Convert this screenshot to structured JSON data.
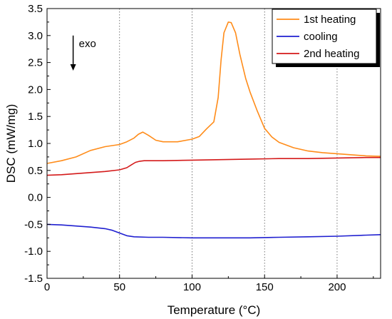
{
  "chart_data": {
    "type": "line",
    "xlabel": "Temperature (°C)",
    "ylabel": "DSC (mW/mg)",
    "xlim": [
      0,
      230
    ],
    "ylim": [
      -1.5,
      3.5
    ],
    "xticks": [
      0,
      50,
      100,
      150,
      200
    ],
    "yticks": [
      -1.5,
      -1.0,
      -0.5,
      0.0,
      0.5,
      1.0,
      1.5,
      2.0,
      2.5,
      3.0,
      3.5
    ],
    "ytick_labels": [
      "-1.5",
      "-1.0",
      "-0.5",
      "0.0",
      "0.5",
      "1.0",
      "1.5",
      "2.0",
      "2.5",
      "3.0",
      "3.5"
    ],
    "xtick_labels": [
      "0",
      "50",
      "100",
      "150",
      "200"
    ],
    "vertical_gridlines_at": [
      50,
      100,
      150,
      200
    ],
    "grid": "vertical dotted lines",
    "legend_position": "top-right",
    "annotation": {
      "text": "exo",
      "arrow": "down",
      "x": 18,
      "y_from": 3.0,
      "y_to": 2.35
    },
    "series": [
      {
        "name": "1st heating",
        "color": "#ff8c1a",
        "x": [
          0,
          10,
          20,
          30,
          40,
          50,
          55,
          60,
          63,
          66,
          70,
          75,
          80,
          90,
          100,
          105,
          110,
          115,
          118,
          120,
          122,
          125,
          127,
          130,
          133,
          137,
          140,
          145,
          150,
          155,
          160,
          170,
          180,
          190,
          200,
          210,
          220,
          230
        ],
        "y": [
          0.63,
          0.68,
          0.75,
          0.87,
          0.94,
          0.98,
          1.03,
          1.1,
          1.17,
          1.21,
          1.15,
          1.06,
          1.03,
          1.03,
          1.08,
          1.13,
          1.27,
          1.4,
          1.85,
          2.55,
          3.05,
          3.25,
          3.24,
          3.05,
          2.65,
          2.2,
          1.95,
          1.6,
          1.28,
          1.12,
          1.02,
          0.92,
          0.86,
          0.83,
          0.81,
          0.79,
          0.77,
          0.76
        ]
      },
      {
        "name": "cooling",
        "color": "#1f1fd0",
        "x": [
          0,
          10,
          20,
          30,
          40,
          45,
          50,
          55,
          60,
          70,
          80,
          100,
          120,
          140,
          160,
          180,
          200,
          220,
          230
        ],
        "y": [
          -0.5,
          -0.51,
          -0.53,
          -0.55,
          -0.58,
          -0.61,
          -0.66,
          -0.71,
          -0.73,
          -0.74,
          -0.74,
          -0.75,
          -0.75,
          -0.75,
          -0.74,
          -0.73,
          -0.72,
          -0.7,
          -0.69
        ]
      },
      {
        "name": "2nd heating",
        "color": "#d41a1a",
        "x": [
          0,
          10,
          20,
          30,
          40,
          50,
          55,
          58,
          61,
          64,
          67,
          70,
          80,
          100,
          120,
          140,
          160,
          180,
          200,
          220,
          230
        ],
        "y": [
          0.41,
          0.42,
          0.44,
          0.46,
          0.48,
          0.51,
          0.55,
          0.6,
          0.65,
          0.67,
          0.68,
          0.68,
          0.68,
          0.69,
          0.7,
          0.71,
          0.72,
          0.72,
          0.73,
          0.74,
          0.74
        ]
      }
    ]
  }
}
